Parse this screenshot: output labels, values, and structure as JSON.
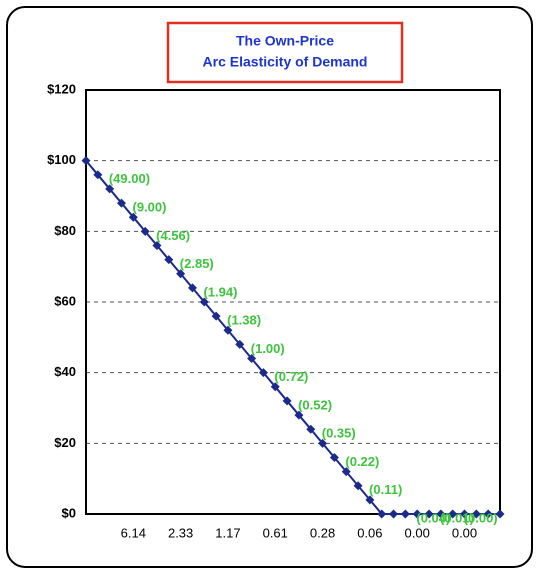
{
  "chart_data": {
    "type": "line",
    "title": [
      "The Own-Price",
      "Arc Elasticity of Demand"
    ],
    "categories": [
      null,
      null,
      null,
      null,
      "6.14",
      null,
      null,
      null,
      "2.33",
      null,
      null,
      null,
      "1.17",
      null,
      null,
      null,
      "0.61",
      null,
      null,
      null,
      "0.28",
      null,
      null,
      null,
      "0.06",
      null,
      null,
      null,
      "0.00",
      null,
      null,
      null,
      "0.00",
      null,
      null,
      null
    ],
    "series": [
      {
        "color": "#1c2a8c",
        "values": [
          100,
          96,
          92,
          88,
          84,
          80,
          76,
          72,
          68,
          64,
          60,
          56,
          52,
          48,
          44,
          40,
          36,
          32,
          28,
          24,
          20,
          16,
          12,
          8,
          4,
          0,
          0,
          0,
          0,
          0,
          0,
          0,
          0,
          0,
          0,
          0
        ],
        "data_labels": [
          null,
          "(49.00)",
          null,
          "(9.00)",
          null,
          "(4.56)",
          null,
          "(2.85)",
          null,
          "(1.94)",
          null,
          "(1.38)",
          null,
          "(1.00)",
          null,
          "(0.72)",
          null,
          "(0.52)",
          null,
          "(0.35)",
          null,
          "(0.22)",
          null,
          "(0.11)",
          null,
          null,
          null,
          "(0.04)",
          null,
          "(0.01)",
          null,
          "(0.00)",
          null,
          null,
          null,
          null
        ],
        "label_color": "#3ec43e"
      }
    ],
    "ylim": [
      0,
      120
    ],
    "yticks": [
      {
        "value": 0,
        "label": "$0"
      },
      {
        "value": 20,
        "label": "$20"
      },
      {
        "value": 40,
        "label": "$40"
      },
      {
        "value": 60,
        "label": "$60"
      },
      {
        "value": 80,
        "label": "$80"
      },
      {
        "value": 100,
        "label": "$100"
      },
      {
        "value": 120,
        "label": "$120"
      }
    ],
    "grid": true
  }
}
